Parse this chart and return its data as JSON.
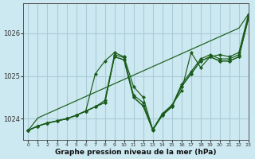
{
  "title": "Graphe pression niveau de la mer (hPa)",
  "bg_color": "#cce8f0",
  "grid_color": "#aaccd8",
  "line_color": "#1a5c1a",
  "marker_color": "#1a5c1a",
  "xlim": [
    -0.5,
    23
  ],
  "ylim": [
    1023.5,
    1026.7
  ],
  "yticks": [
    1024,
    1025,
    1026
  ],
  "xticks": [
    0,
    1,
    2,
    3,
    4,
    5,
    6,
    7,
    8,
    9,
    10,
    11,
    12,
    13,
    14,
    15,
    16,
    17,
    18,
    19,
    20,
    21,
    22,
    23
  ],
  "series": [
    [
      1023.73,
      1023.83,
      1023.9,
      1023.95,
      1024.0,
      1024.08,
      1024.18,
      1025.05,
      1025.35,
      1025.55,
      1025.45,
      1024.75,
      1024.5,
      1023.75,
      1024.12,
      1024.32,
      1024.65,
      1025.55,
      1025.2,
      1025.45,
      1025.5,
      1025.45,
      1025.55,
      1026.45
    ],
    [
      1023.73,
      1023.83,
      1023.9,
      1023.95,
      1024.0,
      1024.08,
      1024.18,
      1024.28,
      1024.43,
      1025.5,
      1025.43,
      1024.55,
      1024.38,
      1023.75,
      1024.1,
      1024.3,
      1024.8,
      1025.1,
      1025.4,
      1025.5,
      1025.4,
      1025.4,
      1025.5,
      1026.4
    ],
    [
      1023.73,
      1023.83,
      1023.9,
      1023.95,
      1024.0,
      1024.08,
      1024.18,
      1024.28,
      1024.38,
      1025.45,
      1025.38,
      1024.5,
      1024.3,
      1023.75,
      1024.08,
      1024.28,
      1024.75,
      1025.05,
      1025.35,
      1025.45,
      1025.35,
      1025.35,
      1025.45,
      1026.35
    ],
    [
      1023.73,
      1023.83,
      1023.9,
      1023.95,
      1024.0,
      1024.08,
      1024.18,
      1024.28,
      1024.38,
      1025.45,
      1025.38,
      1024.5,
      1024.3,
      1023.73,
      1024.08,
      1024.28,
      1024.75,
      1025.05,
      1025.35,
      1025.45,
      1025.35,
      1025.35,
      1025.45,
      1026.35
    ]
  ],
  "linear_series": [
    1023.73,
    1024.02,
    1024.12,
    1024.22,
    1024.32,
    1024.42,
    1024.52,
    1024.62,
    1024.72,
    1024.82,
    1024.92,
    1025.02,
    1025.12,
    1025.22,
    1025.32,
    1025.42,
    1025.52,
    1025.62,
    1025.72,
    1025.82,
    1025.92,
    1026.02,
    1026.12,
    1026.45
  ]
}
